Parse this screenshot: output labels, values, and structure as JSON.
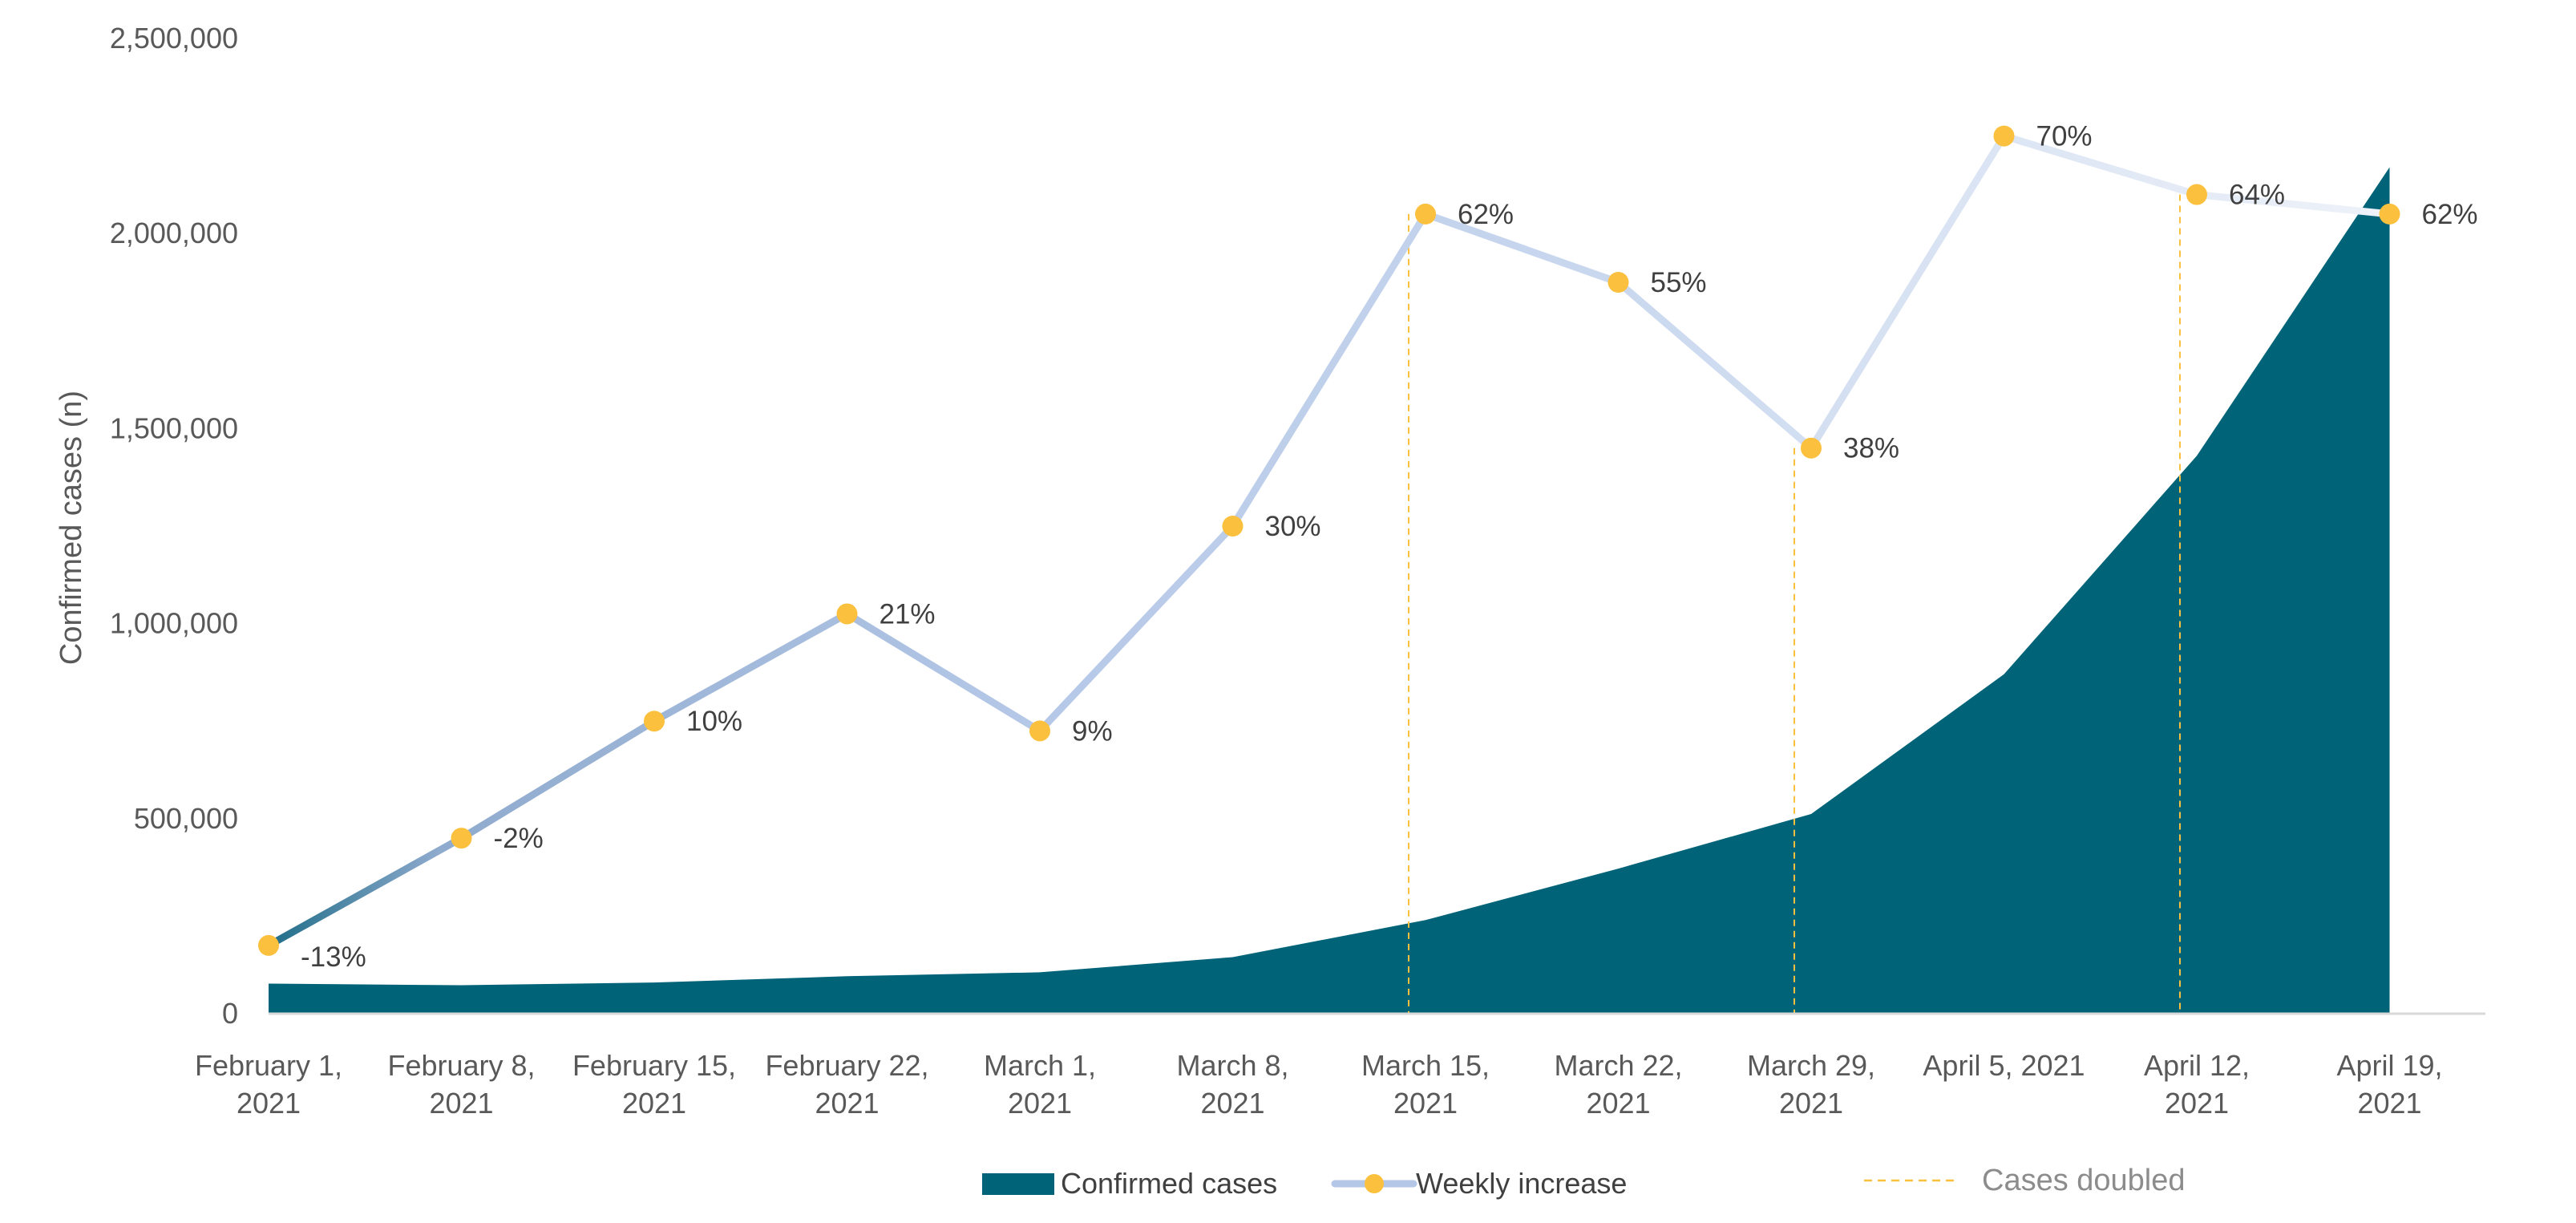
{
  "chart_data": {
    "type": "area",
    "title": "",
    "ylabel": "Confirmed cases (n)",
    "xlabel": "",
    "ylim": [
      0,
      2500000
    ],
    "yticks": [
      0,
      500000,
      1000000,
      1500000,
      2000000,
      2500000
    ],
    "ytick_labels": [
      "0",
      "500,000",
      "1,000,000",
      "1,500,000",
      "2,000,000",
      "2,500,000"
    ],
    "categories": [
      [
        "February 1,",
        "2021"
      ],
      [
        "February 8,",
        "2021"
      ],
      [
        "February 15,",
        "2021"
      ],
      [
        "February 22,",
        "2021"
      ],
      [
        "March 1,",
        "2021"
      ],
      [
        "March 8,",
        "2021"
      ],
      [
        "March 15,",
        "2021"
      ],
      [
        "March 22,",
        "2021"
      ],
      [
        "March 29,",
        "2021"
      ],
      [
        "April 5, 2021"
      ],
      [
        "April 12,",
        "2021"
      ],
      [
        "April 19,",
        "2021"
      ]
    ],
    "series": [
      {
        "name": "Confirmed cases",
        "kind": "area",
        "color": "#006378",
        "values": [
          77000,
          73000,
          80000,
          96000,
          106000,
          145000,
          240000,
          372000,
          512000,
          870000,
          1430000,
          2170000
        ]
      },
      {
        "name": "Weekly increase",
        "kind": "line",
        "line_color": "#b4c7e7",
        "marker_color": "#fbc03d",
        "plotted_values": [
          175000,
          450000,
          750000,
          1025000,
          725000,
          1250000,
          2050000,
          1875000,
          1450000,
          2250000,
          2100000,
          2050000
        ],
        "labels": [
          "-13%",
          "-2%",
          "10%",
          "21%",
          "9%",
          "30%",
          "62%",
          "55%",
          "38%",
          "70%",
          "64%",
          "62%"
        ]
      }
    ],
    "cases_doubled_weeks": [
      6,
      8,
      10
    ],
    "reference_line_color": "#fbc03d",
    "legend": {
      "position": "bottom",
      "items": [
        "Confirmed cases",
        "Weekly increase",
        "Cases doubled"
      ]
    },
    "grid": false
  }
}
